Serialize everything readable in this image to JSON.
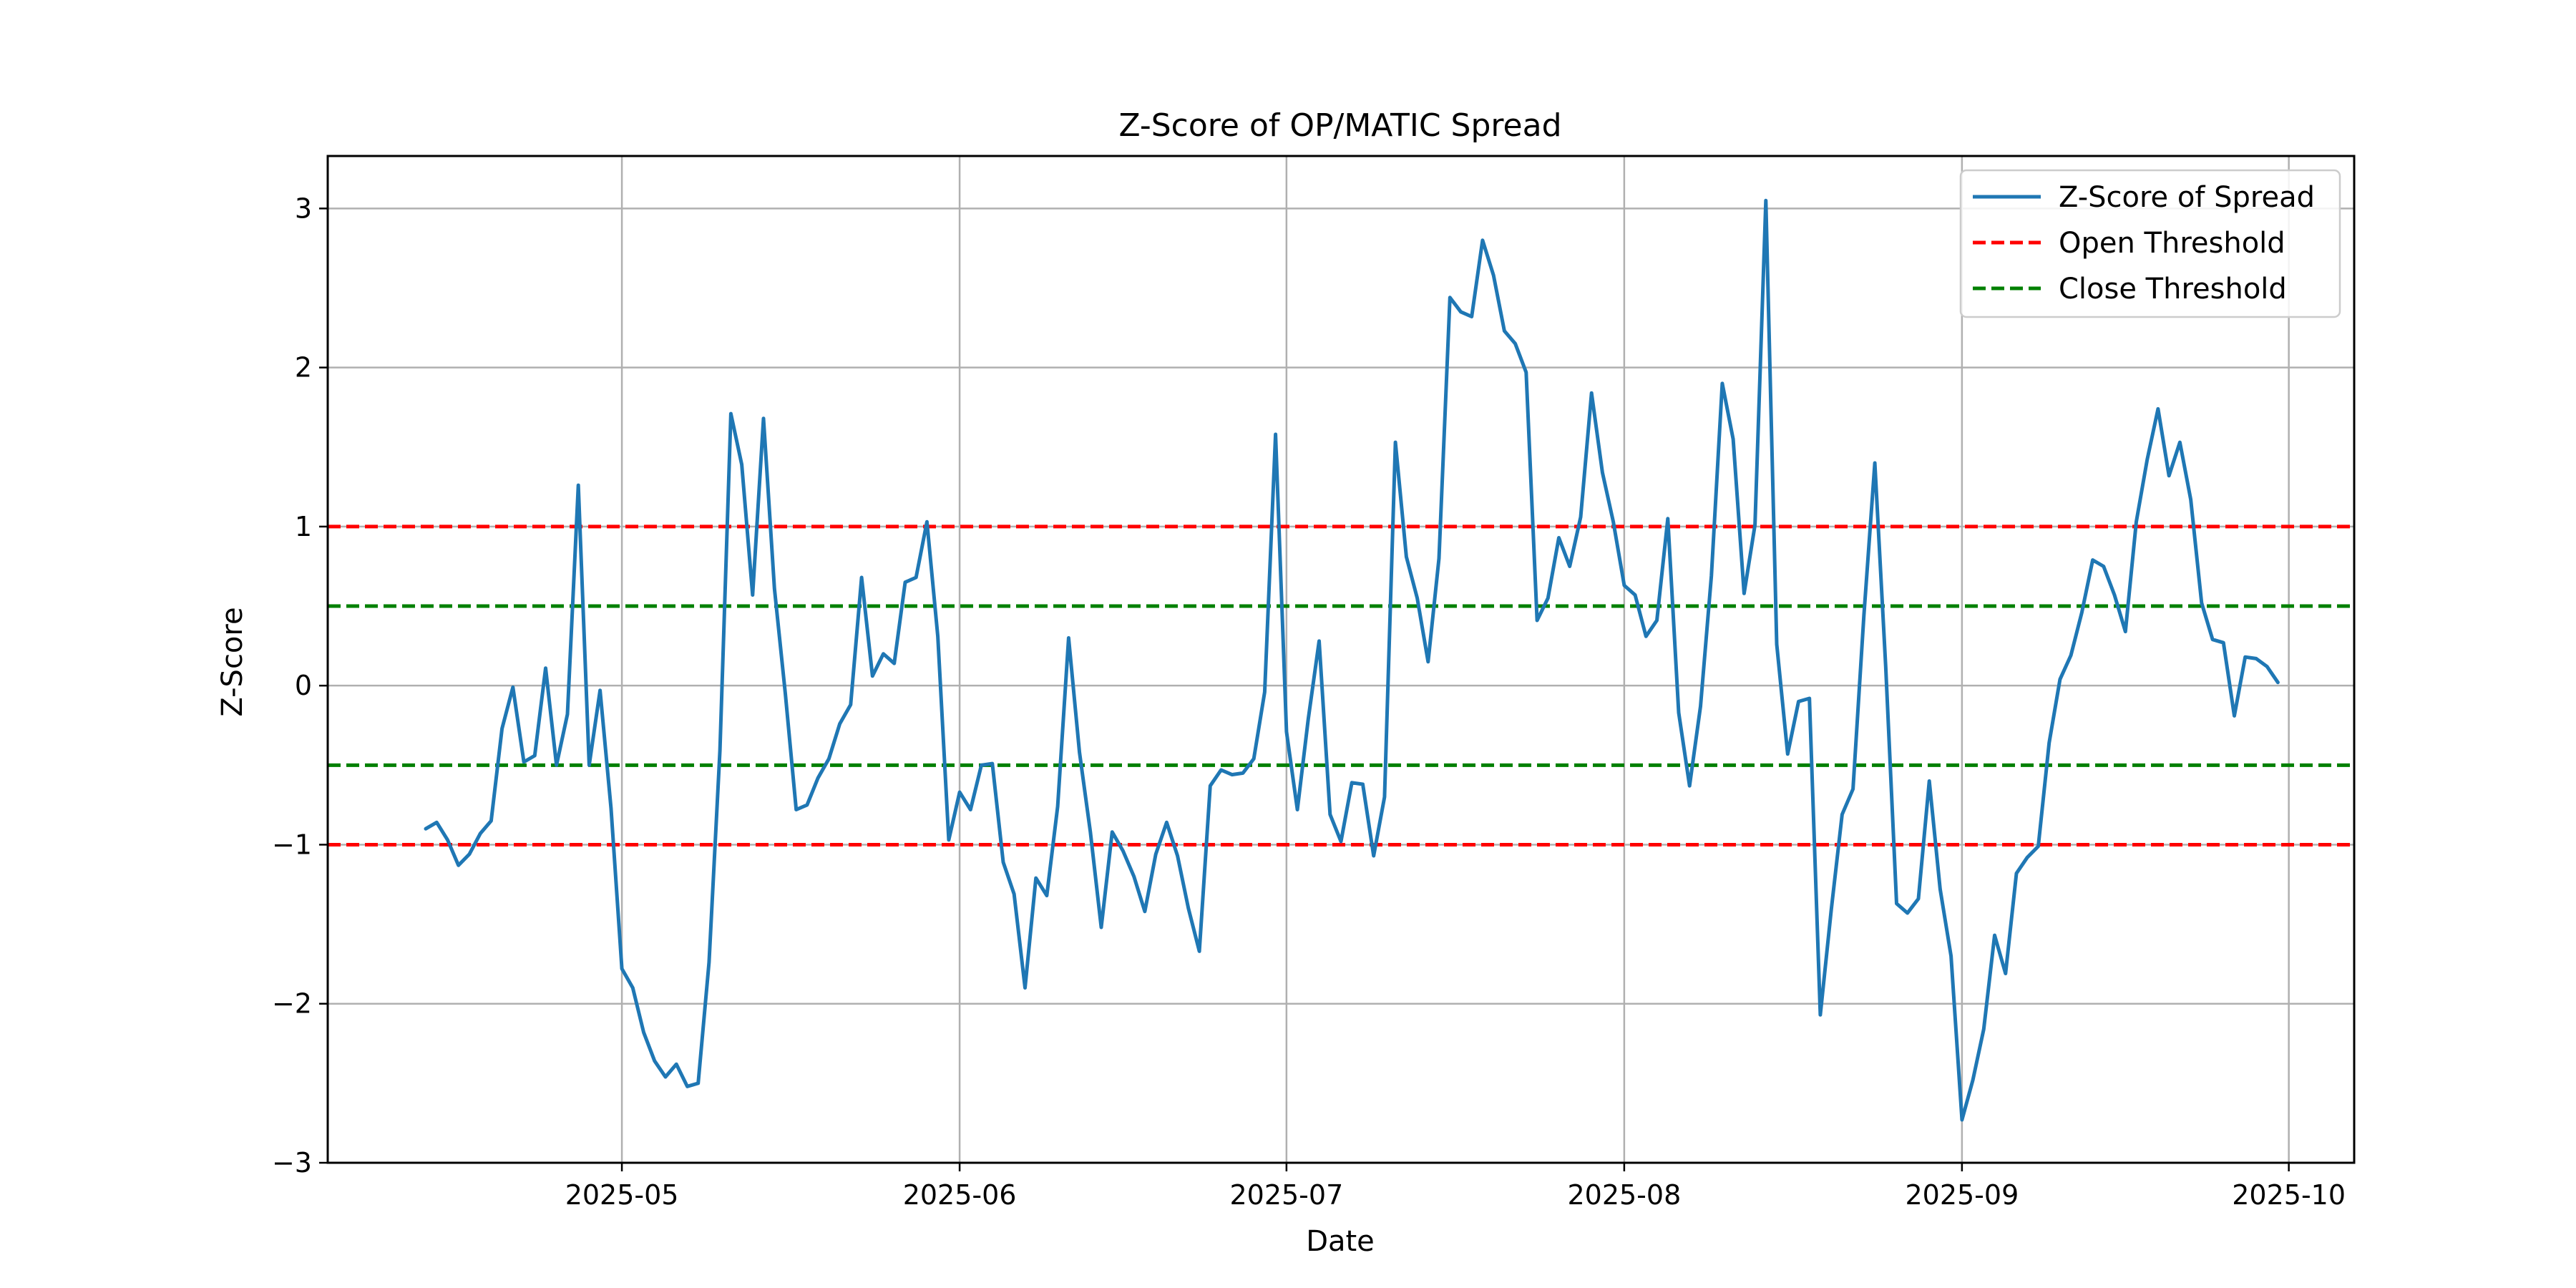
{
  "chart_data": {
    "type": "line",
    "title": "Z-Score of OP/MATIC Spread",
    "xlabel": "Date",
    "ylabel": "Z-Score",
    "xlim": [
      "2025-04-04",
      "2025-10-07"
    ],
    "ylim": [
      -3.0,
      3.33
    ],
    "grid": true,
    "legend_position": "top-right",
    "x_ticks": [
      "2025-05",
      "2025-06",
      "2025-07",
      "2025-08",
      "2025-09",
      "2025-10"
    ],
    "y_ticks": [
      -3,
      -2,
      -1,
      0,
      1,
      2,
      3
    ],
    "x_tick_labels": [
      "2025-05",
      "2025-06",
      "2025-07",
      "2025-08",
      "2025-09",
      "2025-10"
    ],
    "y_tick_labels": [
      "−3",
      "−2",
      "−1",
      "0",
      "1",
      "2",
      "3"
    ],
    "series": [
      {
        "name": "Z-Score of Spread",
        "color": "#1f77b4",
        "style": "solid",
        "x": [
          "2025-04-13",
          "2025-04-14",
          "2025-04-15",
          "2025-04-16",
          "2025-04-17",
          "2025-04-18",
          "2025-04-19",
          "2025-04-20",
          "2025-04-21",
          "2025-04-22",
          "2025-04-23",
          "2025-04-24",
          "2025-04-25",
          "2025-04-26",
          "2025-04-27",
          "2025-04-28",
          "2025-04-29",
          "2025-04-30",
          "2025-05-01",
          "2025-05-02",
          "2025-05-03",
          "2025-05-04",
          "2025-05-05",
          "2025-05-06",
          "2025-05-07",
          "2025-05-08",
          "2025-05-09",
          "2025-05-10",
          "2025-05-11",
          "2025-05-12",
          "2025-05-13",
          "2025-05-14",
          "2025-05-15",
          "2025-05-16",
          "2025-05-17",
          "2025-05-18",
          "2025-05-19",
          "2025-05-20",
          "2025-05-21",
          "2025-05-22",
          "2025-05-23",
          "2025-05-24",
          "2025-05-25",
          "2025-05-26",
          "2025-05-27",
          "2025-05-28",
          "2025-05-29",
          "2025-05-30",
          "2025-05-31",
          "2025-06-01",
          "2025-06-02",
          "2025-06-03",
          "2025-06-04",
          "2025-06-05",
          "2025-06-06",
          "2025-06-07",
          "2025-06-08",
          "2025-06-09",
          "2025-06-10",
          "2025-06-11",
          "2025-06-12",
          "2025-06-13",
          "2025-06-14",
          "2025-06-15",
          "2025-06-16",
          "2025-06-17",
          "2025-06-18",
          "2025-06-19",
          "2025-06-20",
          "2025-06-21",
          "2025-06-22",
          "2025-06-23",
          "2025-06-24",
          "2025-06-25",
          "2025-06-26",
          "2025-06-27",
          "2025-06-28",
          "2025-06-29",
          "2025-06-30",
          "2025-07-01",
          "2025-07-02",
          "2025-07-03",
          "2025-07-04",
          "2025-07-05",
          "2025-07-06",
          "2025-07-07",
          "2025-07-08",
          "2025-07-09",
          "2025-07-10",
          "2025-07-11",
          "2025-07-12",
          "2025-07-13",
          "2025-07-14",
          "2025-07-15",
          "2025-07-16",
          "2025-07-17",
          "2025-07-18",
          "2025-07-19",
          "2025-07-20",
          "2025-07-21",
          "2025-07-22",
          "2025-07-23",
          "2025-07-24",
          "2025-07-25",
          "2025-07-26",
          "2025-07-27",
          "2025-07-28",
          "2025-07-29",
          "2025-07-30",
          "2025-07-31",
          "2025-08-01",
          "2025-08-02",
          "2025-08-03",
          "2025-08-04",
          "2025-08-05",
          "2025-08-06",
          "2025-08-07",
          "2025-08-08",
          "2025-08-09",
          "2025-08-10",
          "2025-08-11",
          "2025-08-12",
          "2025-08-13",
          "2025-08-14",
          "2025-08-15",
          "2025-08-16",
          "2025-08-17",
          "2025-08-18",
          "2025-08-19",
          "2025-08-20",
          "2025-08-21",
          "2025-08-22",
          "2025-08-23",
          "2025-08-24",
          "2025-08-25",
          "2025-08-26",
          "2025-08-27",
          "2025-08-28",
          "2025-08-29",
          "2025-08-30",
          "2025-08-31",
          "2025-09-01",
          "2025-09-02",
          "2025-09-03",
          "2025-09-04",
          "2025-09-05",
          "2025-09-06",
          "2025-09-07",
          "2025-09-08",
          "2025-09-09",
          "2025-09-10",
          "2025-09-11",
          "2025-09-12",
          "2025-09-13",
          "2025-09-14",
          "2025-09-15",
          "2025-09-16",
          "2025-09-17",
          "2025-09-18",
          "2025-09-19",
          "2025-09-20",
          "2025-09-21",
          "2025-09-22",
          "2025-09-23",
          "2025-09-24",
          "2025-09-25",
          "2025-09-26",
          "2025-09-27",
          "2025-09-28",
          "2025-09-29",
          "2025-09-30"
        ],
        "y": [
          -0.9,
          -0.86,
          -0.97,
          -1.13,
          -1.06,
          -0.93,
          -0.85,
          -0.27,
          -0.01,
          -0.48,
          -0.44,
          0.11,
          -0.5,
          -0.18,
          1.26,
          -0.5,
          -0.03,
          -0.77,
          -1.78,
          -1.9,
          -2.18,
          -2.36,
          -2.46,
          -2.38,
          -2.52,
          -2.5,
          -1.74,
          -0.41,
          1.71,
          1.39,
          0.57,
          1.68,
          0.61,
          -0.05,
          -0.78,
          -0.75,
          -0.58,
          -0.46,
          -0.24,
          -0.12,
          0.68,
          0.06,
          0.2,
          0.14,
          0.65,
          0.68,
          1.03,
          0.31,
          -0.97,
          -0.67,
          -0.78,
          -0.5,
          -0.49,
          -1.11,
          -1.31,
          -1.9,
          -1.21,
          -1.32,
          -0.76,
          0.3,
          -0.42,
          -0.92,
          -1.52,
          -0.92,
          -1.04,
          -1.2,
          -1.42,
          -1.06,
          -0.86,
          -1.07,
          -1.4,
          -1.67,
          -0.63,
          -0.53,
          -0.56,
          -0.55,
          -0.46,
          -0.04,
          1.58,
          -0.29,
          -0.78,
          -0.21,
          0.28,
          -0.81,
          -0.98,
          -0.61,
          -0.62,
          -1.07,
          -0.7,
          1.53,
          0.81,
          0.55,
          0.15,
          0.8,
          2.44,
          2.35,
          2.32,
          2.8,
          2.58,
          2.23,
          2.15,
          1.97,
          0.41,
          0.55,
          0.93,
          0.75,
          1.06,
          1.84,
          1.34,
          1.03,
          0.63,
          0.57,
          0.31,
          0.41,
          1.05,
          -0.17,
          -0.63,
          -0.13,
          0.69,
          1.9,
          1.55,
          0.58,
          1.01,
          3.05,
          0.26,
          -0.43,
          -0.1,
          -0.08,
          -2.07,
          -1.41,
          -0.81,
          -0.65,
          0.44,
          1.4,
          0.12,
          -1.37,
          -1.43,
          -1.34,
          -0.6,
          -1.28,
          -1.7,
          -2.73,
          -2.48,
          -2.16,
          -1.57,
          -1.81,
          -1.18,
          -1.08,
          -1.01,
          -0.36,
          0.04,
          0.19,
          0.46,
          0.79,
          0.75,
          0.57,
          0.34,
          1.03,
          1.42,
          1.74,
          1.32,
          1.53,
          1.17,
          0.52,
          0.29,
          0.27,
          -0.19,
          0.18,
          0.17,
          0.12,
          0.02
        ]
      },
      {
        "name": "Open Threshold",
        "color": "#ff0000",
        "style": "dashed",
        "hlines": [
          1,
          -1
        ]
      },
      {
        "name": "Close Threshold",
        "color": "#008000",
        "style": "dashed",
        "hlines": [
          0.5,
          -0.5
        ]
      }
    ]
  }
}
